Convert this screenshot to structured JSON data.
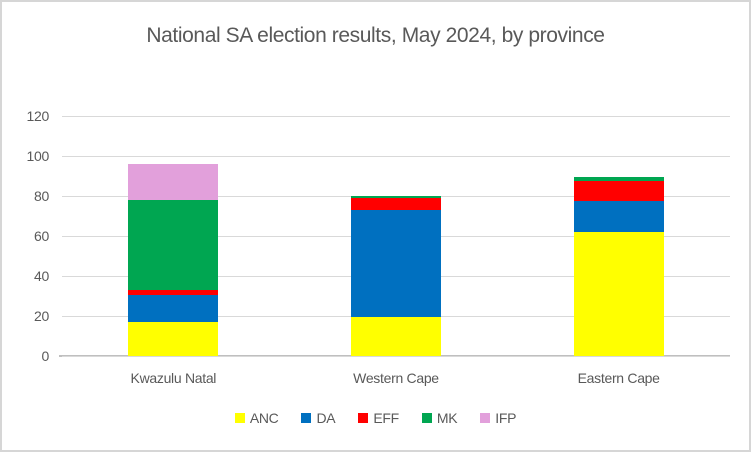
{
  "chart_data": {
    "type": "bar",
    "stacked": true,
    "title": "National SA election results, May 2024, by province",
    "categories": [
      "Kwazulu Natal",
      "Western Cape",
      "Eastern Cape"
    ],
    "series": [
      {
        "name": "ANC",
        "color": "#FFFF00",
        "values": [
          17,
          19.5,
          62
        ]
      },
      {
        "name": "DA",
        "color": "#0070C0",
        "values": [
          13.5,
          53.5,
          15.5
        ]
      },
      {
        "name": "EFF",
        "color": "#FF0000",
        "values": [
          2.5,
          6,
          10
        ]
      },
      {
        "name": "MK",
        "color": "#00A651",
        "values": [
          45,
          1,
          2
        ]
      },
      {
        "name": "IFP",
        "color": "#E2A0DB",
        "values": [
          18,
          0,
          0
        ]
      }
    ],
    "xlabel": "",
    "ylabel": "",
    "ylim": [
      0,
      120
    ],
    "yticks": [
      0,
      20,
      40,
      60,
      80,
      100,
      120
    ],
    "grid": true,
    "legend_position": "bottom",
    "text_color": "#595959",
    "gridline_color": "#D9D9D9",
    "axis_line_color": "#BFBFBF"
  }
}
